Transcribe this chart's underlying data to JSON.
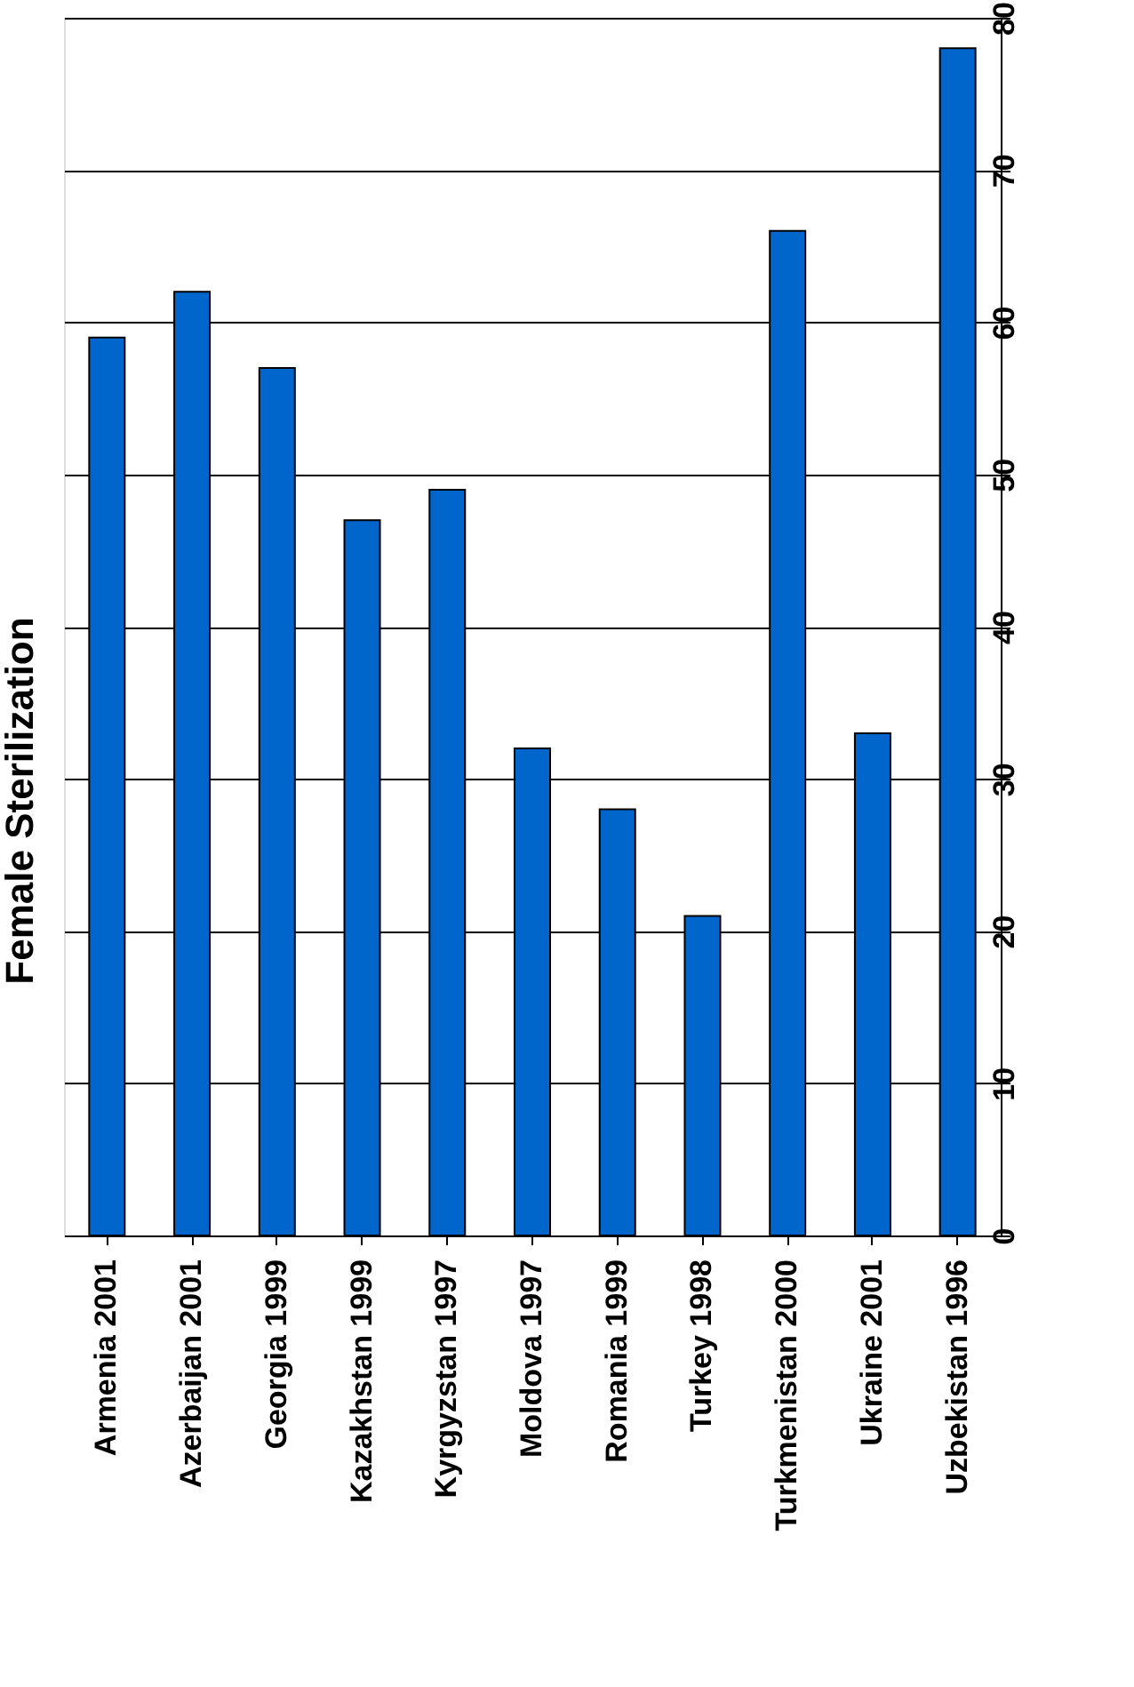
{
  "chart_data": {
    "type": "bar",
    "ylabel": "Female Sterilization",
    "categories": [
      "Armenia 2001",
      "Azerbaijan 2001",
      "Georgia 1999",
      "Kazakhstan 1999",
      "Kyrgyzstan 1997",
      "Moldova 1997",
      "Romania 1999",
      "Turkey 1998",
      "Turkmenistan 2000",
      "Ukraine 2001",
      "Uzbekistan 1996"
    ],
    "values": [
      59,
      62,
      57,
      47,
      49,
      32,
      28,
      21,
      66,
      33,
      78
    ],
    "color": "#0066cc",
    "ylim": [
      0,
      80
    ],
    "yticks": [
      0,
      10,
      20,
      30,
      40,
      50,
      60,
      70,
      80
    ],
    "grid": "y"
  }
}
